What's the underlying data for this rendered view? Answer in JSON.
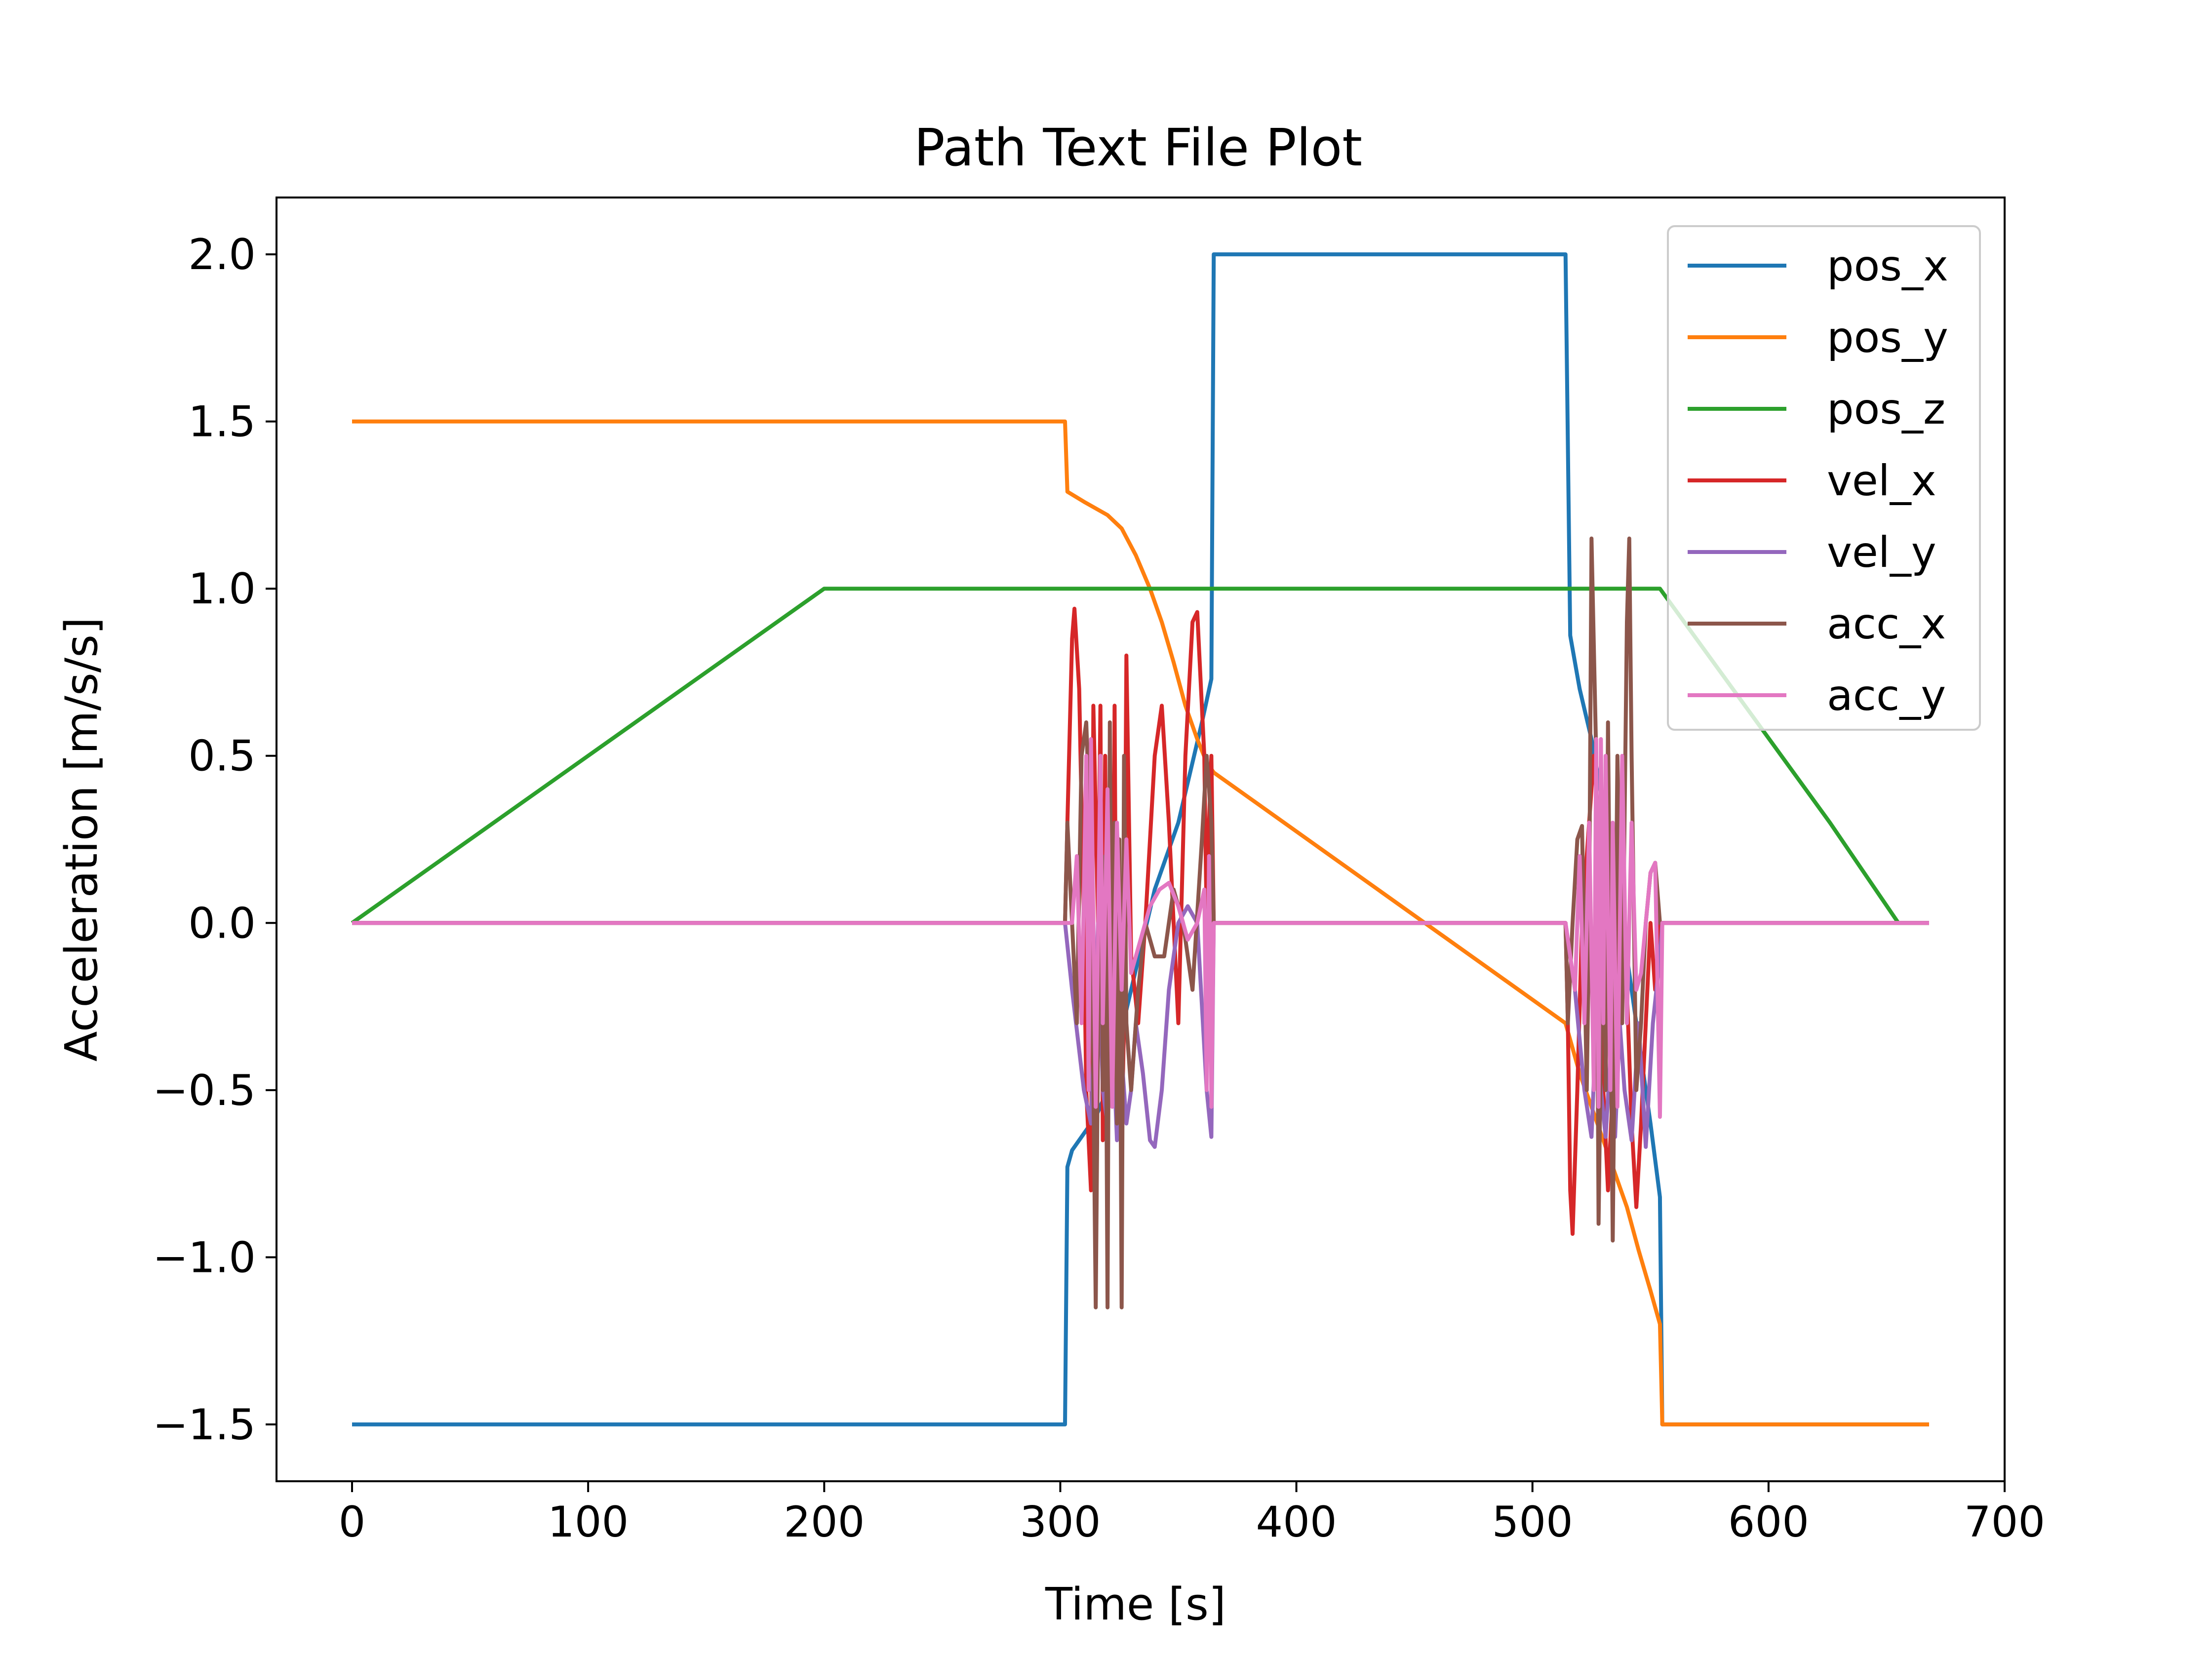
{
  "chart_data": {
    "type": "line",
    "title": "Path Text File Plot",
    "xlabel": "Time [s]",
    "ylabel": "Acceleration [m/s/s]",
    "xlim": [
      -32,
      700
    ],
    "ylim": [
      -1.67,
      2.17
    ],
    "x_ticks": [
      0,
      100,
      200,
      300,
      400,
      500,
      600,
      700
    ],
    "x_tick_labels": [
      "0",
      "100",
      "200",
      "300",
      "400",
      "500",
      "600",
      "700"
    ],
    "y_ticks": [
      -1.5,
      -1.0,
      -0.5,
      0.0,
      0.5,
      1.0,
      1.5,
      2.0
    ],
    "y_tick_labels": [
      "−1.5",
      "−1.0",
      "−0.5",
      "0.0",
      "0.5",
      "1.0",
      "1.5",
      "2.0"
    ],
    "grid": false,
    "legend_position": "top-right",
    "series": [
      {
        "name": "pos_x",
        "color": "#1f77b4",
        "points": [
          [
            0,
            -1.5
          ],
          [
            302,
            -1.5
          ],
          [
            303,
            -0.73
          ],
          [
            305,
            -0.68
          ],
          [
            310,
            -0.63
          ],
          [
            315,
            -0.58
          ],
          [
            320,
            -0.5
          ],
          [
            325,
            -0.35
          ],
          [
            330,
            -0.2
          ],
          [
            335,
            -0.05
          ],
          [
            340,
            0.1
          ],
          [
            345,
            0.2
          ],
          [
            350,
            0.3
          ],
          [
            355,
            0.45
          ],
          [
            360,
            0.6
          ],
          [
            364,
            0.73
          ],
          [
            365,
            2.0
          ],
          [
            514,
            2.0
          ],
          [
            516,
            0.86
          ],
          [
            520,
            0.7
          ],
          [
            525,
            0.55
          ],
          [
            530,
            0.35
          ],
          [
            535,
            0.1
          ],
          [
            540,
            -0.1
          ],
          [
            545,
            -0.35
          ],
          [
            550,
            -0.6
          ],
          [
            554,
            -0.82
          ],
          [
            555,
            -1.5
          ],
          [
            668,
            -1.5
          ]
        ]
      },
      {
        "name": "pos_y",
        "color": "#ff7f0e",
        "points": [
          [
            0,
            1.5
          ],
          [
            302,
            1.5
          ],
          [
            303,
            1.29
          ],
          [
            310,
            1.26
          ],
          [
            320,
            1.22
          ],
          [
            326,
            1.18
          ],
          [
            332,
            1.1
          ],
          [
            338,
            1.0
          ],
          [
            343,
            0.9
          ],
          [
            348,
            0.78
          ],
          [
            353,
            0.65
          ],
          [
            358,
            0.55
          ],
          [
            362,
            0.48
          ],
          [
            365,
            0.45
          ],
          [
            514,
            -0.3
          ],
          [
            520,
            -0.45
          ],
          [
            525,
            -0.55
          ],
          [
            530,
            -0.65
          ],
          [
            535,
            -0.75
          ],
          [
            540,
            -0.85
          ],
          [
            545,
            -0.98
          ],
          [
            550,
            -1.1
          ],
          [
            554,
            -1.2
          ],
          [
            555,
            -1.5
          ],
          [
            668,
            -1.5
          ]
        ]
      },
      {
        "name": "pos_z",
        "color": "#2ca02c",
        "points": [
          [
            0,
            0.0
          ],
          [
            200,
            1.0
          ],
          [
            554,
            1.0
          ],
          [
            626,
            0.3
          ],
          [
            655,
            0.0
          ],
          [
            668,
            0.0
          ]
        ]
      },
      {
        "name": "vel_x",
        "color": "#d62728",
        "points": [
          [
            0,
            0.0
          ],
          [
            302,
            0.0
          ],
          [
            303,
            0.3
          ],
          [
            305,
            0.85
          ],
          [
            306,
            0.94
          ],
          [
            308,
            0.7
          ],
          [
            310,
            0.0
          ],
          [
            311,
            -0.5
          ],
          [
            313,
            -0.8
          ],
          [
            314,
            0.65
          ],
          [
            316,
            0.0
          ],
          [
            317,
            0.65
          ],
          [
            318,
            -0.65
          ],
          [
            319,
            0.5
          ],
          [
            320,
            -0.6
          ],
          [
            321,
            0.5
          ],
          [
            322,
            -0.5
          ],
          [
            323,
            0.65
          ],
          [
            324,
            -0.6
          ],
          [
            325,
            0.0
          ],
          [
            326,
            -0.65
          ],
          [
            327,
            -0.3
          ],
          [
            328,
            0.8
          ],
          [
            330,
            -0.1
          ],
          [
            333,
            -0.3
          ],
          [
            336,
            0.0
          ],
          [
            340,
            0.5
          ],
          [
            343,
            0.65
          ],
          [
            346,
            0.3
          ],
          [
            350,
            -0.3
          ],
          [
            353,
            0.5
          ],
          [
            356,
            0.9
          ],
          [
            358,
            0.93
          ],
          [
            361,
            0.5
          ],
          [
            362,
            0.0
          ],
          [
            363,
            0.3
          ],
          [
            364,
            0.5
          ],
          [
            365,
            0.0
          ],
          [
            514,
            0.0
          ],
          [
            515,
            -0.3
          ],
          [
            516,
            -0.8
          ],
          [
            517,
            -0.93
          ],
          [
            519,
            -0.5
          ],
          [
            521,
            0.0
          ],
          [
            524,
            0.3
          ],
          [
            526,
            0.5
          ],
          [
            528,
            0.3
          ],
          [
            530,
            -0.5
          ],
          [
            532,
            -0.8
          ],
          [
            534,
            -0.5
          ],
          [
            536,
            0.0
          ],
          [
            538,
            0.3
          ],
          [
            540,
            -0.2
          ],
          [
            542,
            -0.6
          ],
          [
            544,
            -0.85
          ],
          [
            546,
            -0.6
          ],
          [
            548,
            -0.3
          ],
          [
            550,
            0.0
          ],
          [
            552,
            -0.2
          ],
          [
            554,
            0.0
          ],
          [
            555,
            0.0
          ],
          [
            668,
            0.0
          ]
        ]
      },
      {
        "name": "vel_y",
        "color": "#9467bd",
        "points": [
          [
            0,
            0.0
          ],
          [
            302,
            0.0
          ],
          [
            305,
            -0.2
          ],
          [
            310,
            -0.5
          ],
          [
            313,
            -0.6
          ],
          [
            316,
            0.0
          ],
          [
            318,
            -0.5
          ],
          [
            320,
            -0.6
          ],
          [
            322,
            -0.3
          ],
          [
            324,
            -0.65
          ],
          [
            326,
            -0.4
          ],
          [
            328,
            -0.6
          ],
          [
            330,
            -0.5
          ],
          [
            332,
            -0.3
          ],
          [
            335,
            -0.45
          ],
          [
            338,
            -0.65
          ],
          [
            340,
            -0.67
          ],
          [
            343,
            -0.5
          ],
          [
            346,
            -0.2
          ],
          [
            350,
            0.0
          ],
          [
            354,
            0.05
          ],
          [
            358,
            0.0
          ],
          [
            362,
            -0.5
          ],
          [
            364,
            -0.64
          ],
          [
            365,
            0.0
          ],
          [
            514,
            0.0
          ],
          [
            518,
            -0.2
          ],
          [
            522,
            -0.5
          ],
          [
            525,
            -0.64
          ],
          [
            527,
            -0.3
          ],
          [
            529,
            -0.5
          ],
          [
            531,
            -0.64
          ],
          [
            533,
            -0.4
          ],
          [
            535,
            -0.64
          ],
          [
            537,
            -0.3
          ],
          [
            539,
            -0.5
          ],
          [
            542,
            -0.65
          ],
          [
            545,
            -0.3
          ],
          [
            548,
            -0.67
          ],
          [
            551,
            -0.3
          ],
          [
            554,
            -0.1
          ],
          [
            555,
            0.0
          ],
          [
            668,
            0.0
          ]
        ]
      },
      {
        "name": "acc_x",
        "color": "#8c564b",
        "points": [
          [
            0,
            0.0
          ],
          [
            302,
            0.0
          ],
          [
            303,
            0.3
          ],
          [
            305,
            0.0
          ],
          [
            307,
            -0.3
          ],
          [
            309,
            0.5
          ],
          [
            311,
            0.6
          ],
          [
            313,
            0.2
          ],
          [
            315,
            -1.15
          ],
          [
            317,
            0.5
          ],
          [
            318,
            -0.5
          ],
          [
            319,
            0.2
          ],
          [
            320,
            -1.15
          ],
          [
            321,
            0.6
          ],
          [
            322,
            -0.5
          ],
          [
            323,
            0.3
          ],
          [
            324,
            -0.6
          ],
          [
            325,
            0.25
          ],
          [
            326,
            -1.15
          ],
          [
            327,
            0.5
          ],
          [
            328,
            -0.3
          ],
          [
            330,
            -0.5
          ],
          [
            333,
            -0.2
          ],
          [
            336,
            0.0
          ],
          [
            340,
            -0.1
          ],
          [
            344,
            -0.1
          ],
          [
            348,
            0.1
          ],
          [
            352,
            0.0
          ],
          [
            356,
            -0.2
          ],
          [
            360,
            0.25
          ],
          [
            362,
            0.5
          ],
          [
            364,
            0.3
          ],
          [
            365,
            0.0
          ],
          [
            514,
            0.0
          ],
          [
            515,
            -0.3
          ],
          [
            517,
            0.0
          ],
          [
            519,
            0.25
          ],
          [
            521,
            0.29
          ],
          [
            523,
            -0.5
          ],
          [
            524,
            0.0
          ],
          [
            525,
            1.15
          ],
          [
            527,
            0.5
          ],
          [
            528,
            -0.9
          ],
          [
            530,
            0.2
          ],
          [
            531,
            -0.5
          ],
          [
            532,
            0.6
          ],
          [
            534,
            -0.95
          ],
          [
            536,
            0.5
          ],
          [
            538,
            -0.3
          ],
          [
            540,
            0.9
          ],
          [
            541,
            1.15
          ],
          [
            542,
            0.5
          ],
          [
            544,
            -0.5
          ],
          [
            546,
            -0.3
          ],
          [
            548,
            0.0
          ],
          [
            550,
            0.15
          ],
          [
            552,
            0.18
          ],
          [
            554,
            0.0
          ],
          [
            555,
            0.0
          ],
          [
            668,
            0.0
          ]
        ]
      },
      {
        "name": "acc_y",
        "color": "#e377c2",
        "points": [
          [
            0,
            0.0
          ],
          [
            302,
            0.0
          ],
          [
            305,
            0.0
          ],
          [
            307,
            0.2
          ],
          [
            309,
            -0.3
          ],
          [
            311,
            0.5
          ],
          [
            312,
            -0.5
          ],
          [
            313,
            0.55
          ],
          [
            315,
            -0.55
          ],
          [
            317,
            0.5
          ],
          [
            318,
            -0.3
          ],
          [
            320,
            0.4
          ],
          [
            322,
            -0.55
          ],
          [
            324,
            0.3
          ],
          [
            326,
            -0.2
          ],
          [
            328,
            0.25
          ],
          [
            330,
            -0.15
          ],
          [
            334,
            -0.05
          ],
          [
            338,
            0.05
          ],
          [
            342,
            0.1
          ],
          [
            346,
            0.12
          ],
          [
            350,
            0.05
          ],
          [
            354,
            -0.05
          ],
          [
            358,
            0.0
          ],
          [
            361,
            0.1
          ],
          [
            362,
            -0.5
          ],
          [
            363,
            0.2
          ],
          [
            364,
            -0.55
          ],
          [
            365,
            0.0
          ],
          [
            514,
            0.0
          ],
          [
            518,
            -0.2
          ],
          [
            520,
            0.2
          ],
          [
            522,
            -0.3
          ],
          [
            524,
            0.3
          ],
          [
            526,
            -0.5
          ],
          [
            527,
            0.55
          ],
          [
            528,
            -0.55
          ],
          [
            529,
            0.55
          ],
          [
            530,
            -0.3
          ],
          [
            531,
            0.5
          ],
          [
            533,
            -0.5
          ],
          [
            534,
            0.3
          ],
          [
            536,
            -0.55
          ],
          [
            538,
            0.5
          ],
          [
            540,
            -0.3
          ],
          [
            542,
            0.3
          ],
          [
            544,
            -0.2
          ],
          [
            546,
            -0.15
          ],
          [
            548,
            0.0
          ],
          [
            550,
            0.15
          ],
          [
            552,
            0.18
          ],
          [
            553,
            -0.2
          ],
          [
            554,
            -0.58
          ],
          [
            555,
            0.0
          ],
          [
            668,
            0.0
          ]
        ]
      }
    ]
  }
}
